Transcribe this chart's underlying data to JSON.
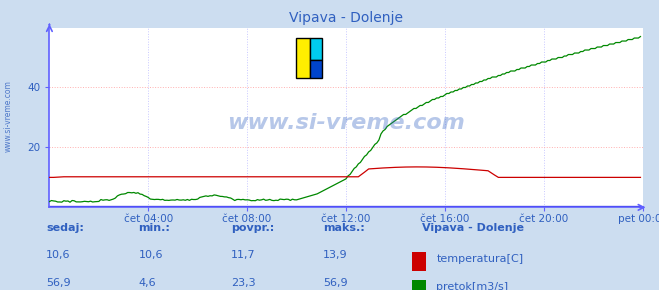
{
  "title": "Vipava - Dolenje",
  "bg_color": "#ccddf0",
  "plot_bg_color": "#ffffff",
  "grid_color_h": "#ffb0b0",
  "grid_color_v": "#c8c8ff",
  "axis_color": "#cc0000",
  "left_axis_color": "#6060ff",
  "bottom_axis_color": "#6060ff",
  "text_color": "#3060c0",
  "title_color": "#3060c0",
  "watermark_color": "#3060c0",
  "watermark_alpha": 0.35,
  "temp_color": "#cc0000",
  "flow_color": "#008800",
  "height_color": "#0000cc",
  "legend_title": "Vipava - Dolenje",
  "legend_items": [
    "temperatura[C]",
    "pretok[m3/s]"
  ],
  "legend_colors": [
    "#cc0000",
    "#008800"
  ],
  "table_headers": [
    "sedaj:",
    "min.:",
    "povpr.:",
    "maks.:"
  ],
  "table_temp": [
    "10,6",
    "10,6",
    "11,7",
    "13,9"
  ],
  "table_flow": [
    "56,9",
    "4,6",
    "23,3",
    "56,9"
  ],
  "ylim": [
    0,
    60
  ],
  "yticks": [
    20,
    40
  ],
  "xlim": [
    0,
    288
  ],
  "x_tick_positions": [
    48,
    96,
    144,
    192,
    240,
    288
  ],
  "x_labels": [
    "čet 04:00",
    "čet 08:00",
    "čet 12:00",
    "čet 16:00",
    "čet 20:00",
    "pet 00:00"
  ],
  "watermark": "www.si-vreme.com",
  "sidebar_label": "www.si-vreme.com",
  "logo_yellow": "#ffee00",
  "logo_cyan": "#00ccee",
  "logo_blue": "#0044cc"
}
